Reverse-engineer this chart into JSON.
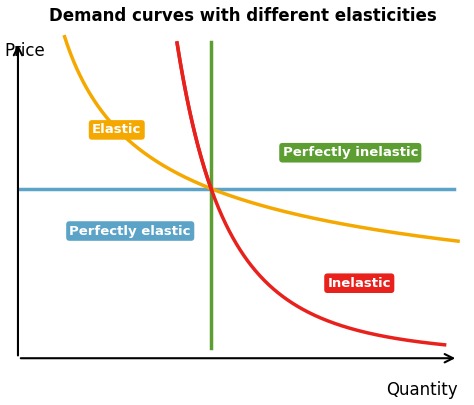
{
  "title": "Demand curves with different elasticities",
  "xlabel": "Quantity",
  "ylabel": "Price",
  "background_color": "#ffffff",
  "title_fontsize": 12,
  "axis_label_fontsize": 12,
  "xlim": [
    0,
    10
  ],
  "ylim": [
    0,
    10
  ],
  "intersection_x": 4.3,
  "intersection_y": 5.2,
  "elastic_color": "#F5A800",
  "inelastic_color": "#E8211D",
  "perfectly_elastic_color": "#5BA4C8",
  "perfectly_inelastic_color": "#5C9E31",
  "labels": {
    "elastic": "Elastic",
    "inelastic": "Inelastic",
    "perfectly_elastic": "Perfectly elastic",
    "perfectly_inelastic": "Perfectly inelastic"
  },
  "label_fontsize": 9.5,
  "elastic_exp": 0.45,
  "inelastic_exp": 3.2
}
